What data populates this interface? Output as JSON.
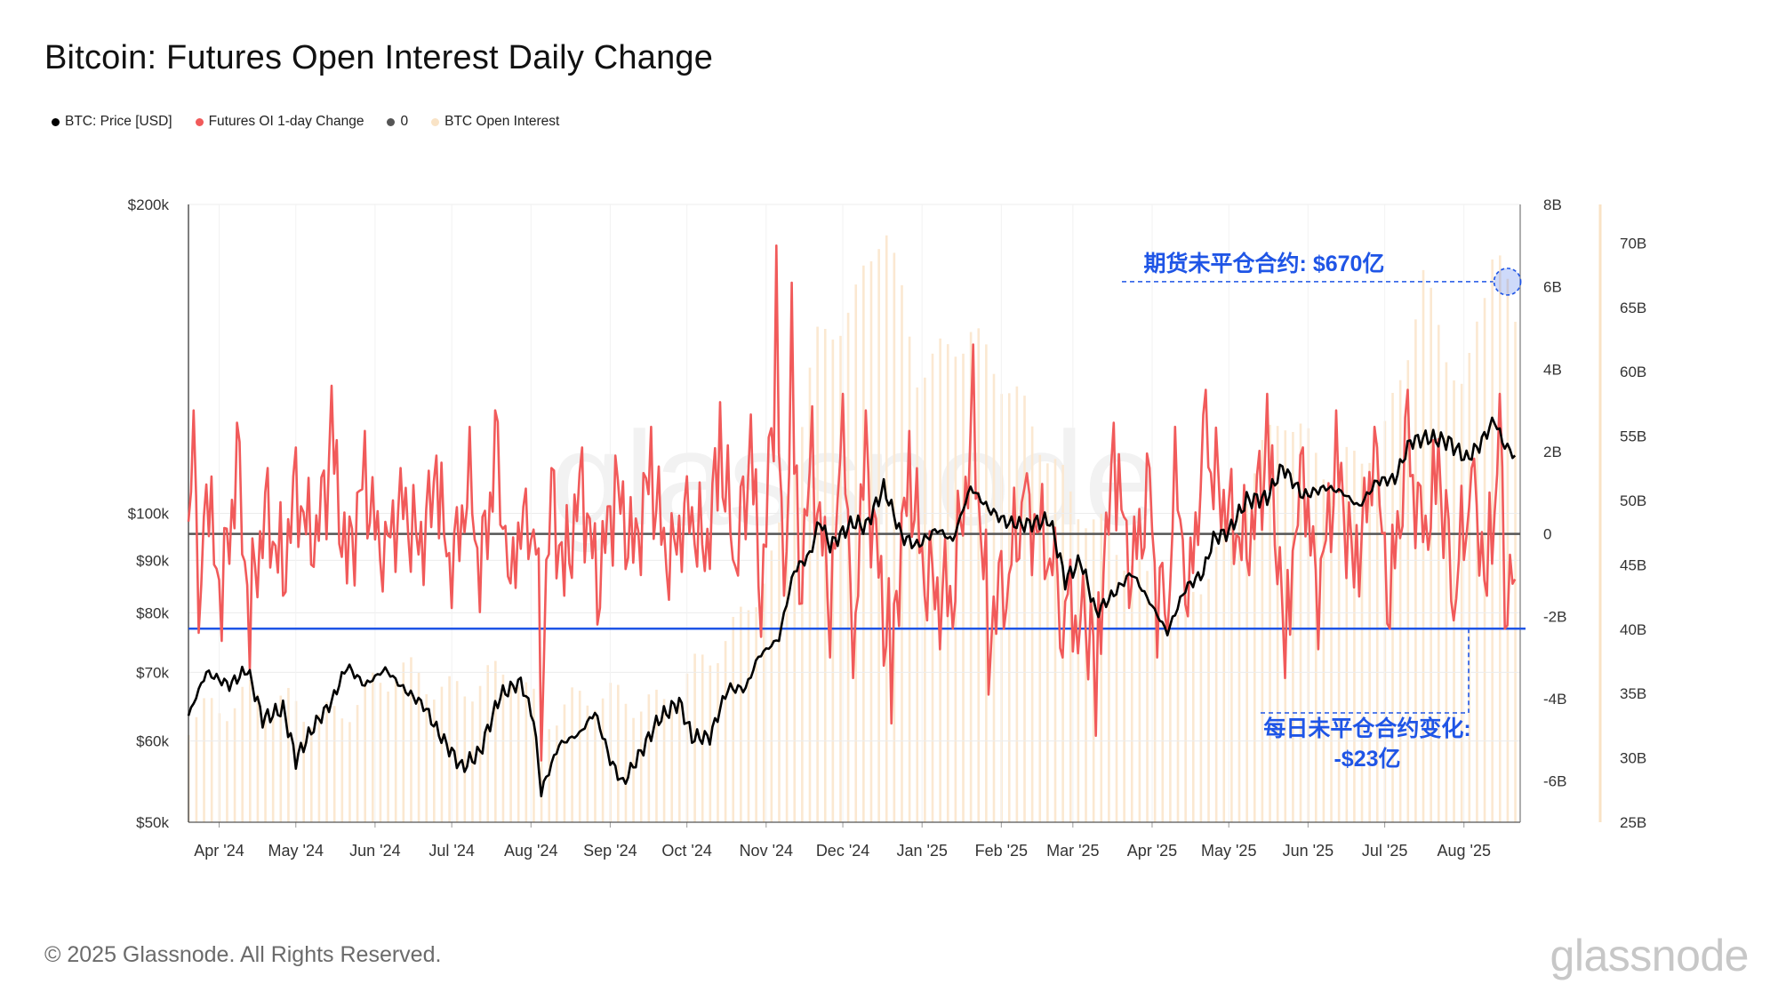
{
  "chart_data": {
    "type": "line",
    "title": "Bitcoin: Futures Open Interest Daily Change",
    "legend": [
      {
        "label": "BTC: Price [USD]",
        "color": "#000000"
      },
      {
        "label": "Futures OI 1-day Change",
        "color": "#f15a5a"
      },
      {
        "label": "0",
        "color": "#555555"
      },
      {
        "label": "BTC Open Interest",
        "color": "#f9e3c6"
      }
    ],
    "x_ticks": [
      "Apr '24",
      "May '24",
      "Jun '24",
      "Jul '24",
      "Aug '24",
      "Sep '24",
      "Oct '24",
      "Nov '24",
      "Dec '24",
      "Jan '25",
      "Feb '25",
      "Mar '25",
      "Apr '25",
      "May '25",
      "Jun '25",
      "Jul '25",
      "Aug '25"
    ],
    "y_left": {
      "ticks": [
        "$200k",
        "$100k",
        "$90k",
        "$80k",
        "$70k",
        "$60k",
        "$50k"
      ],
      "tick_values": [
        200000,
        100000,
        90000,
        80000,
        70000,
        60000,
        50000
      ],
      "scale": "log",
      "range": [
        50000,
        200000
      ]
    },
    "y_right1": {
      "ticks": [
        "8B",
        "6B",
        "4B",
        "2B",
        "0",
        "-2B",
        "-4B",
        "-6B"
      ],
      "tick_values": [
        8,
        6,
        4,
        2,
        0,
        -2,
        -4,
        -6
      ],
      "range": [
        -7,
        8
      ],
      "unit": "B USD"
    },
    "y_right2": {
      "ticks": [
        "70B",
        "65B",
        "60B",
        "55B",
        "50B",
        "45B",
        "40B",
        "35B",
        "30B",
        "25B"
      ],
      "tick_values": [
        70,
        65,
        60,
        55,
        50,
        45,
        40,
        35,
        30,
        25
      ],
      "range": [
        25,
        73
      ],
      "unit": "B USD"
    },
    "series": [
      {
        "name": "BTC: Price [USD]",
        "type": "line",
        "color": "#000000",
        "points": [
          [
            "2024-03-20",
            63500
          ],
          [
            "2024-03-27",
            70000
          ],
          [
            "2024-04-05",
            68000
          ],
          [
            "2024-04-12",
            70500
          ],
          [
            "2024-04-18",
            63000
          ],
          [
            "2024-04-26",
            64500
          ],
          [
            "2024-05-01",
            57500
          ],
          [
            "2024-05-08",
            62000
          ],
          [
            "2024-05-15",
            65500
          ],
          [
            "2024-05-21",
            71000
          ],
          [
            "2024-05-28",
            68000
          ],
          [
            "2024-06-05",
            70500
          ],
          [
            "2024-06-12",
            67500
          ],
          [
            "2024-06-20",
            65000
          ],
          [
            "2024-06-26",
            61000
          ],
          [
            "2024-07-05",
            56500
          ],
          [
            "2024-07-12",
            58500
          ],
          [
            "2024-07-20",
            66500
          ],
          [
            "2024-07-28",
            68500
          ],
          [
            "2024-08-02",
            63000
          ],
          [
            "2024-08-05",
            53500
          ],
          [
            "2024-08-12",
            59500
          ],
          [
            "2024-08-20",
            61000
          ],
          [
            "2024-08-26",
            64000
          ],
          [
            "2024-09-01",
            57500
          ],
          [
            "2024-09-06",
            54500
          ],
          [
            "2024-09-13",
            58500
          ],
          [
            "2024-09-20",
            63000
          ],
          [
            "2024-09-28",
            65500
          ],
          [
            "2024-10-03",
            60500
          ],
          [
            "2024-10-10",
            60500
          ],
          [
            "2024-10-17",
            67500
          ],
          [
            "2024-10-24",
            67500
          ],
          [
            "2024-10-29",
            72500
          ],
          [
            "2024-11-06",
            75500
          ],
          [
            "2024-11-12",
            88000
          ],
          [
            "2024-11-18",
            91000
          ],
          [
            "2024-11-22",
            98500
          ],
          [
            "2024-11-26",
            93000
          ],
          [
            "2024-12-05",
            98000
          ],
          [
            "2024-12-10",
            97000
          ],
          [
            "2024-12-17",
            106000
          ],
          [
            "2024-12-24",
            95000
          ],
          [
            "2024-12-30",
            93000
          ],
          [
            "2025-01-07",
            96500
          ],
          [
            "2025-01-13",
            94000
          ],
          [
            "2025-01-20",
            106000
          ],
          [
            "2025-01-27",
            101000
          ],
          [
            "2025-02-03",
            98000
          ],
          [
            "2025-02-10",
            97500
          ],
          [
            "2025-02-20",
            98500
          ],
          [
            "2025-02-26",
            86000
          ],
          [
            "2025-03-04",
            90000
          ],
          [
            "2025-03-10",
            80000
          ],
          [
            "2025-03-17",
            83500
          ],
          [
            "2025-03-24",
            87500
          ],
          [
            "2025-03-31",
            82000
          ],
          [
            "2025-04-07",
            76500
          ],
          [
            "2025-04-14",
            84500
          ],
          [
            "2025-04-21",
            87500
          ],
          [
            "2025-04-25",
            94500
          ],
          [
            "2025-05-01",
            96000
          ],
          [
            "2025-05-08",
            103000
          ],
          [
            "2025-05-16",
            103500
          ],
          [
            "2025-05-22",
            111000
          ],
          [
            "2025-05-30",
            104000
          ],
          [
            "2025-06-08",
            106000
          ],
          [
            "2025-06-14",
            105000
          ],
          [
            "2025-06-21",
            101500
          ],
          [
            "2025-06-28",
            107500
          ],
          [
            "2025-07-05",
            108000
          ],
          [
            "2025-07-11",
            117500
          ],
          [
            "2025-07-18",
            118500
          ],
          [
            "2025-07-26",
            117500
          ],
          [
            "2025-08-02",
            113000
          ],
          [
            "2025-08-07",
            116500
          ],
          [
            "2025-08-13",
            123500
          ],
          [
            "2025-08-16",
            117500
          ],
          [
            "2025-08-21",
            113500
          ]
        ]
      },
      {
        "name": "Futures OI 1-day Change",
        "type": "line",
        "color": "#f15a5a",
        "points": [
          [
            "2024-03-20",
            0.3
          ],
          [
            "2024-03-22",
            3.0
          ],
          [
            "2024-03-24",
            -2.4
          ],
          [
            "2024-03-27",
            1.2
          ],
          [
            "2024-04-02",
            -2.6
          ],
          [
            "2024-04-08",
            2.7
          ],
          [
            "2024-04-13",
            -3.3
          ],
          [
            "2024-04-19",
            1.0
          ],
          [
            "2024-04-26",
            -1.5
          ],
          [
            "2024-05-01",
            2.1
          ],
          [
            "2024-05-08",
            -0.8
          ],
          [
            "2024-05-15",
            3.6
          ],
          [
            "2024-05-21",
            -1.2
          ],
          [
            "2024-05-28",
            2.5
          ],
          [
            "2024-06-04",
            -1.4
          ],
          [
            "2024-06-11",
            1.6
          ],
          [
            "2024-06-18",
            -0.5
          ],
          [
            "2024-06-25",
            1.9
          ],
          [
            "2024-07-01",
            -1.8
          ],
          [
            "2024-07-08",
            2.6
          ],
          [
            "2024-07-12",
            -1.9
          ],
          [
            "2024-07-18",
            3.0
          ],
          [
            "2024-07-24",
            -1.2
          ],
          [
            "2024-07-30",
            1.1
          ],
          [
            "2024-08-03",
            -0.5
          ],
          [
            "2024-08-05",
            -5.5
          ],
          [
            "2024-08-09",
            1.6
          ],
          [
            "2024-08-14",
            -1.5
          ],
          [
            "2024-08-21",
            2.1
          ],
          [
            "2024-08-27",
            -2.2
          ],
          [
            "2024-09-03",
            1.9
          ],
          [
            "2024-09-10",
            -0.7
          ],
          [
            "2024-09-17",
            2.6
          ],
          [
            "2024-09-24",
            -1.6
          ],
          [
            "2024-10-01",
            1.4
          ],
          [
            "2024-10-08",
            -0.9
          ],
          [
            "2024-10-14",
            3.2
          ],
          [
            "2024-10-20",
            -0.8
          ],
          [
            "2024-10-26",
            2.9
          ],
          [
            "2024-10-30",
            -2.5
          ],
          [
            "2024-11-05",
            7.0
          ],
          [
            "2024-11-08",
            -1.5
          ],
          [
            "2024-11-11",
            6.1
          ],
          [
            "2024-11-14",
            -1.7
          ],
          [
            "2024-11-19",
            3.1
          ],
          [
            "2024-11-26",
            -3.0
          ],
          [
            "2024-12-01",
            3.4
          ],
          [
            "2024-12-05",
            -3.5
          ],
          [
            "2024-12-10",
            3.0
          ],
          [
            "2024-12-17",
            -3.2
          ],
          [
            "2024-12-20",
            -4.6
          ],
          [
            "2024-12-27",
            2.5
          ],
          [
            "2025-01-02",
            -1.5
          ],
          [
            "2025-01-08",
            -2.8
          ],
          [
            "2025-01-13",
            -2.3
          ],
          [
            "2025-01-21",
            4.6
          ],
          [
            "2025-01-27",
            -3.9
          ],
          [
            "2025-02-03",
            -1.8
          ],
          [
            "2025-02-10",
            1.1
          ],
          [
            "2025-02-20",
            -0.6
          ],
          [
            "2025-02-25",
            -3.0
          ],
          [
            "2025-03-03",
            -2.9
          ],
          [
            "2025-03-10",
            -4.9
          ],
          [
            "2025-03-17",
            2.7
          ],
          [
            "2025-03-24",
            -1.2
          ],
          [
            "2025-03-31",
            1.6
          ],
          [
            "2025-04-03",
            -3.0
          ],
          [
            "2025-04-07",
            -2.4
          ],
          [
            "2025-04-10",
            2.6
          ],
          [
            "2025-04-15",
            -2.0
          ],
          [
            "2025-04-22",
            3.5
          ],
          [
            "2025-05-01",
            0.8
          ],
          [
            "2025-05-08",
            -0.6
          ],
          [
            "2025-05-16",
            3.4
          ],
          [
            "2025-05-23",
            -3.5
          ],
          [
            "2025-05-30",
            2.1
          ],
          [
            "2025-06-05",
            -2.8
          ],
          [
            "2025-06-12",
            3.0
          ],
          [
            "2025-06-19",
            -1.3
          ],
          [
            "2025-06-27",
            2.6
          ],
          [
            "2025-07-03",
            -2.3
          ],
          [
            "2025-07-10",
            3.5
          ],
          [
            "2025-07-16",
            -0.2
          ],
          [
            "2025-07-22",
            2.3
          ],
          [
            "2025-07-28",
            -2.1
          ],
          [
            "2025-08-04",
            1.6
          ],
          [
            "2025-08-10",
            -1.5
          ],
          [
            "2025-08-15",
            3.4
          ],
          [
            "2025-08-17",
            -2.3
          ],
          [
            "2025-08-21",
            -1.1
          ]
        ]
      },
      {
        "name": "0",
        "type": "line",
        "color": "#555555",
        "value": 0
      },
      {
        "name": "BTC Open Interest",
        "type": "bar",
        "color": "#fbe8d1",
        "points": [
          [
            "2024-03-20",
            33
          ],
          [
            "2024-04-15",
            35
          ],
          [
            "2024-05-15",
            33
          ],
          [
            "2024-06-10",
            37
          ],
          [
            "2024-07-01",
            35
          ],
          [
            "2024-07-25",
            37
          ],
          [
            "2024-08-05",
            33
          ],
          [
            "2024-08-25",
            35
          ],
          [
            "2024-09-20",
            34
          ],
          [
            "2024-10-20",
            40
          ],
          [
            "2024-11-05",
            46
          ],
          [
            "2024-11-20",
            62
          ],
          [
            "2024-12-05",
            65
          ],
          [
            "2024-12-17",
            72
          ],
          [
            "2024-12-30",
            60
          ],
          [
            "2025-01-20",
            63
          ],
          [
            "2025-02-10",
            57
          ],
          [
            "2025-03-01",
            50
          ],
          [
            "2025-03-25",
            45
          ],
          [
            "2025-04-10",
            40
          ],
          [
            "2025-05-01",
            48
          ],
          [
            "2025-05-22",
            57
          ],
          [
            "2025-06-10",
            52
          ],
          [
            "2025-07-01",
            55
          ],
          [
            "2025-07-16",
            67
          ],
          [
            "2025-08-01",
            58
          ],
          [
            "2025-08-13",
            71
          ],
          [
            "2025-08-21",
            63
          ]
        ]
      }
    ],
    "reference_line": {
      "value": -2.3,
      "axis": "y_right1",
      "color": "#1f55e6"
    },
    "annotations": [
      {
        "text": "期货未平仓合约: $670亿",
        "anchor": [
          "2025-08-18",
          67.0
        ],
        "axis": "y_right2",
        "color": "#1f55e6"
      },
      {
        "text_lines": [
          "每日未平仓合约变化:",
          "-$23亿"
        ],
        "anchor": [
          "2025-08-18",
          -2.3
        ],
        "axis": "y_right1",
        "color": "#1f55e6"
      }
    ]
  },
  "footer": {
    "copyright": "© 2025 Glassnode. All Rights Reserved."
  },
  "brand": {
    "watermark": "glassnode",
    "logo": "glassnode"
  }
}
